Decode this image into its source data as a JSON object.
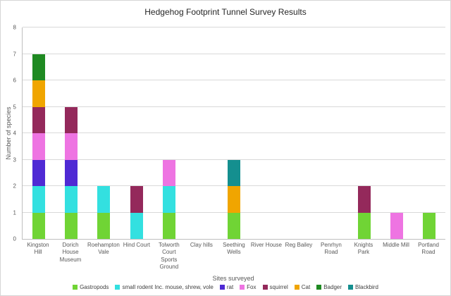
{
  "chart_data": {
    "type": "bar",
    "stacked": true,
    "title": "Hedgehog Footprint Tunnel Survey Results",
    "xlabel": "Sites surveyed",
    "ylabel": "Number of species",
    "ylim": [
      0,
      8
    ],
    "ytick_step": 1,
    "grid": true,
    "legend_position": "bottom",
    "categories": [
      "Kingston Hill",
      "Dorich House Museum",
      "Roehampton Vale",
      "Hind Court",
      "Tolworth Court Sports Ground",
      "Clay hills",
      "Seething Wells",
      "River House",
      "Reg Bailey",
      "Penrhyn Road",
      "Knights Park",
      "Middle Mill",
      "Portland Road"
    ],
    "series": [
      {
        "name": "Gastropods",
        "color": "#70d435",
        "values": [
          1,
          1,
          1,
          0,
          1,
          0,
          1,
          0,
          0,
          0,
          1,
          0,
          1
        ]
      },
      {
        "name": "small rodent Inc. mouse, shrew, vole",
        "color": "#33e0e0",
        "values": [
          1,
          1,
          1,
          1,
          1,
          0,
          0,
          0,
          0,
          0,
          0,
          0,
          0
        ]
      },
      {
        "name": "rat",
        "color": "#4f2ad4",
        "values": [
          1,
          1,
          0,
          0,
          0,
          0,
          0,
          0,
          0,
          0,
          0,
          0,
          0
        ]
      },
      {
        "name": "Fox",
        "color": "#ee74e2",
        "values": [
          1,
          1,
          0,
          0,
          1,
          0,
          0,
          0,
          0,
          0,
          0,
          1,
          0
        ]
      },
      {
        "name": "squirrel",
        "color": "#94295b",
        "values": [
          1,
          1,
          0,
          1,
          0,
          0,
          0,
          0,
          0,
          0,
          1,
          0,
          0
        ]
      },
      {
        "name": "Cat",
        "color": "#f0a500",
        "values": [
          1,
          0,
          0,
          0,
          0,
          0,
          1,
          0,
          0,
          0,
          0,
          0,
          0
        ]
      },
      {
        "name": "Badger",
        "color": "#1f8a22",
        "values": [
          1,
          0,
          0,
          0,
          0,
          0,
          0,
          0,
          0,
          0,
          0,
          0,
          0
        ]
      },
      {
        "name": "Blackbird",
        "color": "#148f8f",
        "values": [
          0,
          0,
          0,
          0,
          0,
          0,
          1,
          0,
          0,
          0,
          0,
          0,
          0
        ]
      }
    ]
  }
}
